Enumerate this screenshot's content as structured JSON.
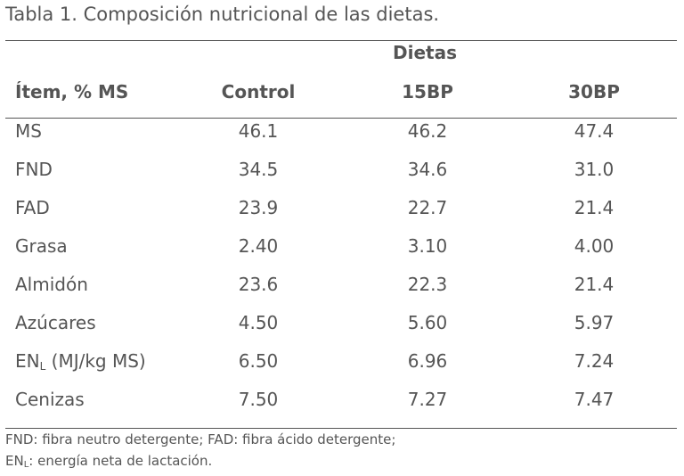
{
  "caption": "Tabla 1. Composición nutricional de las dietas.",
  "header": {
    "group": "Dietas",
    "item": "Ítem, % MS",
    "columns": [
      "Control",
      "15BP",
      "30BP"
    ]
  },
  "rows": [
    {
      "label": "MS",
      "sub": "",
      "suffix": "",
      "values": [
        "46.1",
        "46.2",
        "47.4"
      ]
    },
    {
      "label": "FND",
      "sub": "",
      "suffix": "",
      "values": [
        "34.5",
        "34.6",
        "31.0"
      ]
    },
    {
      "label": "FAD",
      "sub": "",
      "suffix": "",
      "values": [
        "23.9",
        "22.7",
        "21.4"
      ]
    },
    {
      "label": "Grasa",
      "sub": "",
      "suffix": "",
      "values": [
        "2.40",
        "3.10",
        "4.00"
      ]
    },
    {
      "label": "Almidón",
      "sub": "",
      "suffix": "",
      "values": [
        "23.6",
        "22.3",
        "21.4"
      ]
    },
    {
      "label": "Azúcares",
      "sub": "",
      "suffix": "",
      "values": [
        "4.50",
        "5.60",
        "5.97"
      ]
    },
    {
      "label": "EN",
      "sub": "L",
      "suffix": " (MJ/kg MS)",
      "values": [
        "6.50",
        "6.96",
        "7.24"
      ]
    },
    {
      "label": "Cenizas",
      "sub": "",
      "suffix": "",
      "values": [
        "7.50",
        "7.27",
        "7.47"
      ]
    }
  ],
  "footnotes": {
    "line1": "FND: fibra neutro detergente; FAD: fibra ácido detergente;",
    "line2_prefix": "EN",
    "line2_sub": "L",
    "line2_rest": ": energía neta de lactación."
  }
}
